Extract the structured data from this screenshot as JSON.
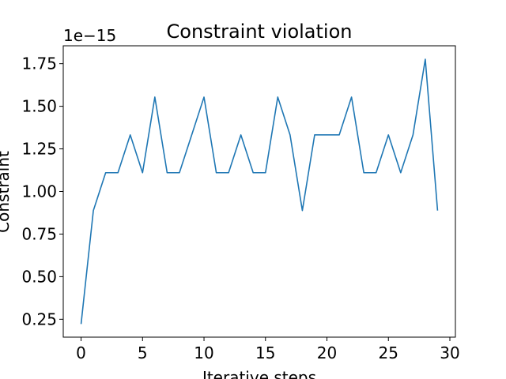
{
  "chart_data": {
    "type": "line",
    "title": "Constraint violation",
    "xlabel": "Iterative steps",
    "ylabel": "Constraint",
    "y_offset_text": "1e−15",
    "xlim": [
      -1.45,
      30.45
    ],
    "ylim": [
      0.145,
      1.855
    ],
    "xticks": [
      0,
      5,
      10,
      15,
      20,
      25,
      30
    ],
    "xtick_labels": [
      "0",
      "5",
      "10",
      "15",
      "20",
      "25",
      "30"
    ],
    "yticks": [
      0.25,
      0.5,
      0.75,
      1.0,
      1.25,
      1.5,
      1.75
    ],
    "ytick_labels": [
      "0.25",
      "0.50",
      "0.75",
      "1.00",
      "1.25",
      "1.50",
      "1.75"
    ],
    "grid": false,
    "line_color": "#1f77b4",
    "series": [
      {
        "x": [
          0,
          1,
          2,
          3,
          4,
          5,
          6,
          7,
          8,
          9,
          10,
          11,
          12,
          13,
          14,
          15,
          16,
          17,
          18,
          19,
          20,
          21,
          22,
          23,
          24,
          25,
          26,
          27,
          28,
          29
        ],
        "values": [
          0.222,
          0.888,
          1.11,
          1.11,
          1.332,
          1.11,
          1.554,
          1.11,
          1.11,
          1.332,
          1.554,
          1.11,
          1.11,
          1.332,
          1.11,
          1.11,
          1.554,
          1.332,
          0.888,
          1.332,
          1.332,
          1.332,
          1.554,
          1.11,
          1.11,
          1.332,
          1.11,
          1.332,
          1.776,
          0.888
        ]
      }
    ]
  }
}
